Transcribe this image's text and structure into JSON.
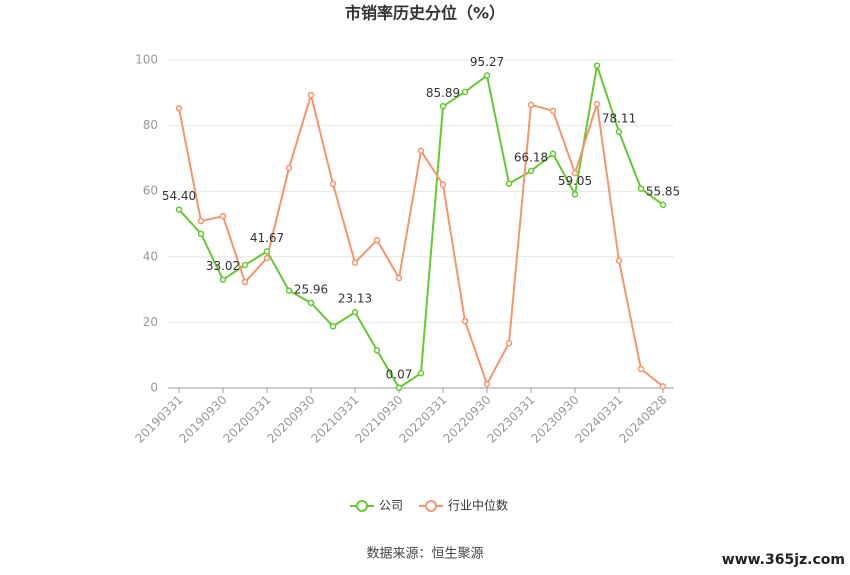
{
  "chart_data": {
    "type": "line",
    "title": "市销率历史分位（%）",
    "categories": [
      "20190331",
      null,
      "20190930",
      null,
      "20200331",
      null,
      "20200930",
      null,
      "20210331",
      null,
      "20210930",
      null,
      "20220331",
      null,
      "20220930",
      null,
      "20230331",
      null,
      "20230930",
      null,
      "20240331",
      null,
      "20240828"
    ],
    "series": [
      {
        "name": "公司",
        "color": "#66c832",
        "values": [
          54.4,
          47.0,
          33.02,
          37.5,
          41.67,
          29.7,
          25.96,
          18.8,
          23.13,
          11.5,
          0.07,
          4.5,
          85.89,
          90.3,
          95.27,
          62.3,
          66.18,
          71.4,
          59.05,
          98.3,
          78.11,
          60.8,
          55.85
        ],
        "value_labels": [
          "54.40",
          null,
          "33.02",
          null,
          "41.67",
          null,
          "25.96",
          null,
          "23.13",
          null,
          "0.07",
          null,
          "85.89",
          null,
          "95.27",
          null,
          "66.18",
          null,
          "59.05",
          null,
          "78.11",
          null,
          "55.85"
        ]
      },
      {
        "name": "行业中位数",
        "color": "#f5956e",
        "values": [
          85.3,
          50.9,
          52.4,
          32.3,
          39.6,
          67.1,
          89.3,
          62.2,
          38.2,
          45.1,
          33.5,
          72.3,
          62.0,
          20.4,
          1.2,
          13.7,
          86.3,
          84.5,
          65.5,
          86.6,
          38.8,
          5.8,
          0.5
        ]
      }
    ],
    "ylim": [
      0,
      100
    ],
    "yticks": [
      0,
      20,
      40,
      60,
      80,
      100
    ],
    "grid": true,
    "source": "数据来源：恒生聚源",
    "watermark": "www.365jz.com"
  }
}
